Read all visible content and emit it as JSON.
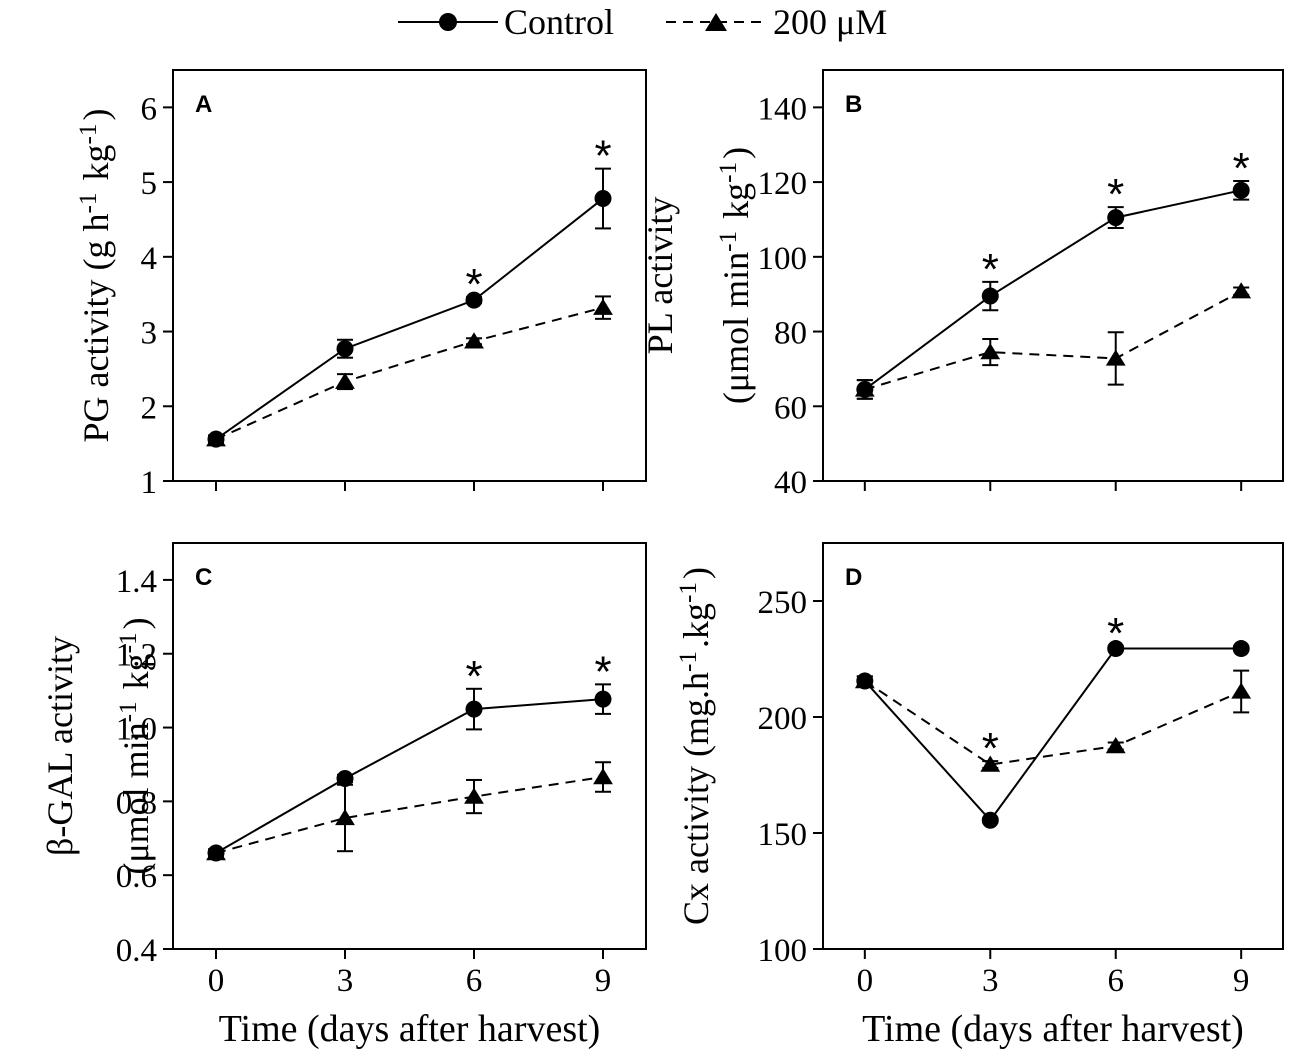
{
  "chart_data": [
    {
      "type": "line",
      "panel": "A",
      "x": [
        0,
        3,
        6,
        9
      ],
      "xlabel": "",
      "ylabel": "PG activity (g h⁻¹ kg⁻¹)",
      "ylabel_lines": [
        "PG activity (g h⁻¹ kg⁻¹)"
      ],
      "ylim": [
        1,
        6.5
      ],
      "yticks": [
        1,
        2,
        3,
        4,
        5,
        6
      ],
      "ytick_labels": [
        "1",
        "2",
        "3",
        "4",
        "5",
        "6"
      ],
      "xlim": [
        -1,
        10
      ],
      "xticks": [
        0,
        3,
        6,
        9
      ],
      "xtick_labels": [],
      "series": [
        {
          "name": "Control",
          "values": [
            1.56,
            2.77,
            3.42,
            4.78
          ],
          "errors": [
            0.05,
            0.12,
            0.04,
            0.4
          ]
        },
        {
          "name": "200 μM",
          "values": [
            1.56,
            2.33,
            2.87,
            3.32
          ],
          "errors": [
            0.05,
            0.1,
            0.04,
            0.15
          ]
        }
      ],
      "significance": [
        "",
        "",
        "*",
        "*"
      ]
    },
    {
      "type": "line",
      "panel": "B",
      "x": [
        0,
        3,
        6,
        9
      ],
      "xlabel": "",
      "ylabel": "PL activity (μmol min⁻¹ kg⁻¹)",
      "ylabel_lines": [
        "PL activity",
        "(μmol min⁻¹ kg⁻¹)"
      ],
      "ylim": [
        40,
        150
      ],
      "yticks": [
        40,
        60,
        80,
        100,
        120,
        140
      ],
      "ytick_labels": [
        "40",
        "60",
        "80",
        "100",
        "120",
        "140"
      ],
      "xlim": [
        -1,
        10
      ],
      "xticks": [
        0,
        3,
        6,
        9
      ],
      "xtick_labels": [],
      "series": [
        {
          "name": "Control",
          "values": [
            64.5,
            89.5,
            110.5,
            117.8
          ],
          "errors": [
            2.5,
            3.8,
            2.8,
            2.5
          ]
        },
        {
          "name": "200 μM",
          "values": [
            64.5,
            74.5,
            72.8,
            90.8
          ],
          "errors": [
            2.5,
            3.5,
            7.0,
            1.0
          ]
        }
      ],
      "significance": [
        "",
        "*",
        "*",
        "*"
      ]
    },
    {
      "type": "line",
      "panel": "C",
      "x": [
        0,
        3,
        6,
        9
      ],
      "xlabel": "Time (days after harvest)",
      "ylabel": "β-GAL activity (μmol min⁻¹ kg⁻¹)",
      "ylabel_lines": [
        "β-GAL activity",
        "(μmol min⁻¹ kg⁻¹)"
      ],
      "ylim": [
        0.4,
        1.5
      ],
      "yticks": [
        0.4,
        0.6,
        0.8,
        1.0,
        1.2,
        1.4
      ],
      "ytick_labels": [
        "0.4",
        "0.6",
        "0.8",
        "1.0",
        "1.2",
        "1.4"
      ],
      "xlim": [
        -1,
        10
      ],
      "xticks": [
        0,
        3,
        6,
        9
      ],
      "xtick_labels": [
        "0",
        "3",
        "6",
        "9"
      ],
      "series": [
        {
          "name": "Control",
          "values": [
            0.66,
            0.862,
            1.05,
            1.077
          ],
          "errors": [
            0.01,
            0.01,
            0.055,
            0.04
          ]
        },
        {
          "name": "200 μM",
          "values": [
            0.66,
            0.755,
            0.813,
            0.866
          ],
          "errors": [
            0.01,
            0.09,
            0.045,
            0.04
          ]
        }
      ],
      "significance": [
        "",
        "",
        "*",
        "*"
      ]
    },
    {
      "type": "line",
      "panel": "D",
      "x": [
        0,
        3,
        6,
        9
      ],
      "xlabel": "Time (days after harvest)",
      "ylabel": "Cx activity (mg.h⁻¹.kg⁻¹)",
      "ylabel_lines": [
        "Cx activity (mg.h⁻¹.kg⁻¹)"
      ],
      "ylim": [
        100,
        275
      ],
      "yticks": [
        100,
        150,
        200,
        250
      ],
      "ytick_labels": [
        "100",
        "150",
        "200",
        "250"
      ],
      "xlim": [
        -1,
        10
      ],
      "xticks": [
        0,
        3,
        6,
        9
      ],
      "xtick_labels": [
        "0",
        "3",
        "6",
        "9"
      ],
      "series": [
        {
          "name": "Control",
          "values": [
            215.5,
            155.5,
            229.5,
            229.5
          ],
          "errors": [
            2,
            1,
            1,
            1
          ]
        },
        {
          "name": "200 μM",
          "values": [
            215.5,
            179.5,
            187.5,
            211.0
          ],
          "errors": [
            2,
            1.5,
            1.5,
            9
          ]
        }
      ],
      "significance": [
        "",
        "*",
        "*",
        ""
      ]
    }
  ],
  "legend": {
    "entries": [
      {
        "label": "Control",
        "marker": "circle",
        "line": "solid"
      },
      {
        "label": "200 μM",
        "marker": "triangle",
        "line": "dashed"
      }
    ],
    "placement": "top-center"
  },
  "colors": {
    "ink": "#000000",
    "background": "#ffffff"
  }
}
